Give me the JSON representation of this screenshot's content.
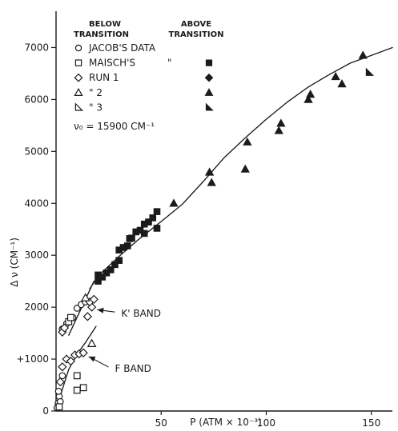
{
  "chart_data": {
    "type": "scatter",
    "title": "",
    "xlabel": "P (ATM × 10⁻³)",
    "ylabel": "Δ ν (CM⁻¹)",
    "xlim": [
      0,
      160
    ],
    "ylim": [
      0,
      7700
    ],
    "x_ticks": [
      {
        "value": 50,
        "label": "50"
      },
      {
        "value": 100,
        "label": "100"
      },
      {
        "value": 150,
        "label": "150"
      }
    ],
    "y_ticks": [
      {
        "value": 0,
        "label": "0"
      },
      {
        "value": 1000,
        "label": "+1000"
      },
      {
        "value": 2000,
        "label": "2000"
      },
      {
        "value": 3000,
        "label": "3000"
      },
      {
        "value": 4000,
        "label": "4000"
      },
      {
        "value": 5000,
        "label": "5000"
      },
      {
        "value": 6000,
        "label": "6000"
      },
      {
        "value": 7000,
        "label": "7000"
      }
    ],
    "grid": false,
    "legend": {
      "placement": "top-left",
      "header_below": "BELOW\nTRANSITION",
      "header_above": "ABOVE\nTRANSITION",
      "entries": [
        {
          "label": "JACOB'S DATA",
          "below_marker": "circle-open",
          "above_marker": "",
          "above_text": ""
        },
        {
          "label": "MAISCH'S",
          "below_marker": "square-open",
          "above_marker": "square-filled",
          "above_text": "\""
        },
        {
          "label": "RUN 1",
          "below_marker": "diamond-open",
          "above_marker": "diamond-filled",
          "above_text": ""
        },
        {
          "label": "\" 2",
          "below_marker": "triangle-open",
          "above_marker": "triangle-filled",
          "above_text": ""
        },
        {
          "label": "\" 3",
          "below_marker": "half-triangle-open",
          "above_marker": "half-triangle-filled",
          "above_text": ""
        }
      ],
      "note": "ν₀ = 15900 CM⁻¹"
    },
    "annotations": [
      {
        "text": "K' BAND",
        "target": [
          18,
          1950
        ],
        "anchor": [
          31,
          1860
        ]
      },
      {
        "text": "F BAND",
        "target": [
          14,
          1050
        ],
        "anchor": [
          28,
          800
        ]
      }
    ],
    "curves": [
      {
        "name": "main-curve",
        "points": [
          [
            16,
            2350
          ],
          [
            20,
            2600
          ],
          [
            30,
            2980
          ],
          [
            40,
            3330
          ],
          [
            50,
            3650
          ],
          [
            60,
            3980
          ],
          [
            70,
            4420
          ],
          [
            80,
            4880
          ],
          [
            90,
            5260
          ],
          [
            100,
            5620
          ],
          [
            110,
            5950
          ],
          [
            120,
            6240
          ],
          [
            130,
            6480
          ],
          [
            140,
            6700
          ],
          [
            150,
            6850
          ],
          [
            160,
            7000
          ]
        ]
      },
      {
        "name": "k-band-line",
        "points": [
          [
            6,
            1460
          ],
          [
            18,
            2500
          ]
        ]
      },
      {
        "name": "f-band-line",
        "points": [
          [
            0,
            0
          ],
          [
            3,
            420
          ],
          [
            6,
            800
          ],
          [
            10,
            1100
          ],
          [
            14,
            1320
          ],
          [
            19,
            1630
          ]
        ]
      }
    ],
    "series": [
      {
        "marker": "circle-open",
        "points": [
          [
            0.5,
            60
          ],
          [
            1,
            150
          ],
          [
            1.5,
            280
          ],
          [
            2,
            180
          ],
          [
            1.2,
            380
          ],
          [
            3,
            680
          ],
          [
            3,
            1580
          ],
          [
            5,
            1680
          ],
          [
            8,
            1800
          ],
          [
            10,
            1980
          ],
          [
            12,
            2050
          ],
          [
            14,
            2100
          ]
        ]
      },
      {
        "marker": "square-open",
        "points": [
          [
            1.5,
            80
          ],
          [
            6,
            1720
          ],
          [
            7,
            1800
          ],
          [
            10,
            680
          ],
          [
            10,
            400
          ],
          [
            13,
            450
          ]
        ]
      },
      {
        "marker": "diamond-open",
        "points": [
          [
            2,
            560
          ],
          [
            3,
            850
          ],
          [
            5,
            1000
          ],
          [
            7,
            960
          ],
          [
            9,
            1080
          ],
          [
            11,
            1100
          ],
          [
            13,
            1120
          ],
          [
            15,
            1820
          ],
          [
            17,
            2000
          ],
          [
            16,
            2100
          ],
          [
            18,
            2150
          ],
          [
            3,
            1520
          ],
          [
            4,
            1600
          ]
        ]
      },
      {
        "marker": "triangle-open",
        "points": [
          [
            14,
            2180
          ],
          [
            17,
            1300
          ]
        ]
      },
      {
        "marker": "square-filled",
        "points": [
          [
            20,
            2500
          ],
          [
            20,
            2620
          ],
          [
            22,
            2580
          ],
          [
            24,
            2660
          ],
          [
            26,
            2720
          ],
          [
            28,
            2820
          ],
          [
            30,
            2900
          ],
          [
            30,
            3100
          ],
          [
            32,
            3150
          ],
          [
            34,
            3180
          ],
          [
            35,
            3320
          ],
          [
            36,
            3330
          ],
          [
            38,
            3450
          ],
          [
            40,
            3480
          ],
          [
            42,
            3420
          ],
          [
            42,
            3600
          ],
          [
            44,
            3640
          ],
          [
            46,
            3720
          ],
          [
            48,
            3520
          ],
          [
            48,
            3840
          ]
        ]
      },
      {
        "marker": "triangle-filled",
        "points": [
          [
            56,
            4000
          ],
          [
            73,
            4600
          ],
          [
            74,
            4400
          ],
          [
            90,
            4660
          ],
          [
            91,
            5180
          ],
          [
            106,
            5400
          ],
          [
            107,
            5540
          ],
          [
            120,
            6000
          ],
          [
            121,
            6100
          ],
          [
            133,
            6440
          ],
          [
            136,
            6300
          ],
          [
            146,
            6850
          ]
        ]
      },
      {
        "marker": "half-triangle-filled",
        "points": [
          [
            149,
            6520
          ]
        ]
      }
    ]
  }
}
